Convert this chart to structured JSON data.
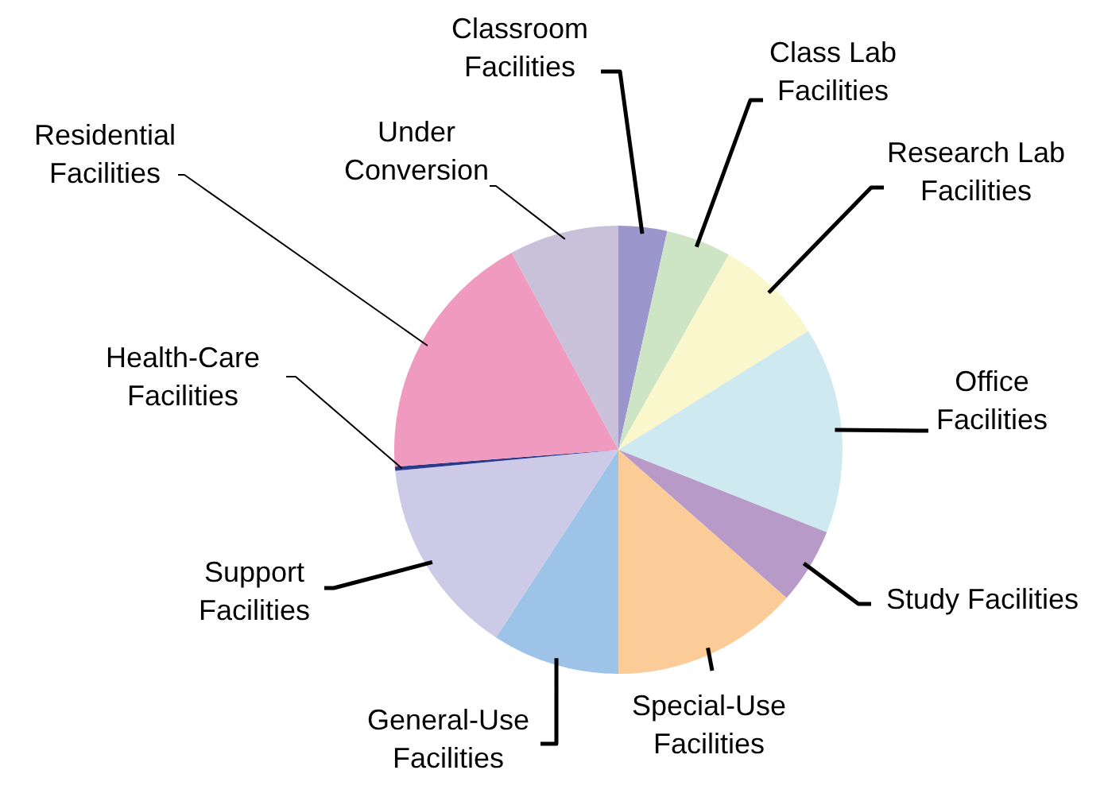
{
  "chart_data": {
    "type": "pie",
    "categories": [
      "Classroom Facilities",
      "Class Lab Facilities",
      "Research Lab Facilities",
      "Office Facilities",
      "Study Facilities",
      "Special-Use Facilities",
      "General-Use Facilities",
      "Support Facilities",
      "Health-Care Facilities",
      "Residential Facilities",
      "Under Conversion"
    ],
    "values": [
      3.5,
      4.7,
      7.9,
      14.9,
      5.5,
      13.5,
      9.2,
      14.3,
      0.3,
      18.3,
      7.9
    ],
    "colors": [
      "#9b97cc",
      "#cde5c5",
      "#fbf7cc",
      "#cfe9f0",
      "#b89ac8",
      "#fbcb98",
      "#9dc3e8",
      "#cccae6",
      "#2a3a8c",
      "#f19ac0",
      "#c9c0da"
    ]
  }
}
